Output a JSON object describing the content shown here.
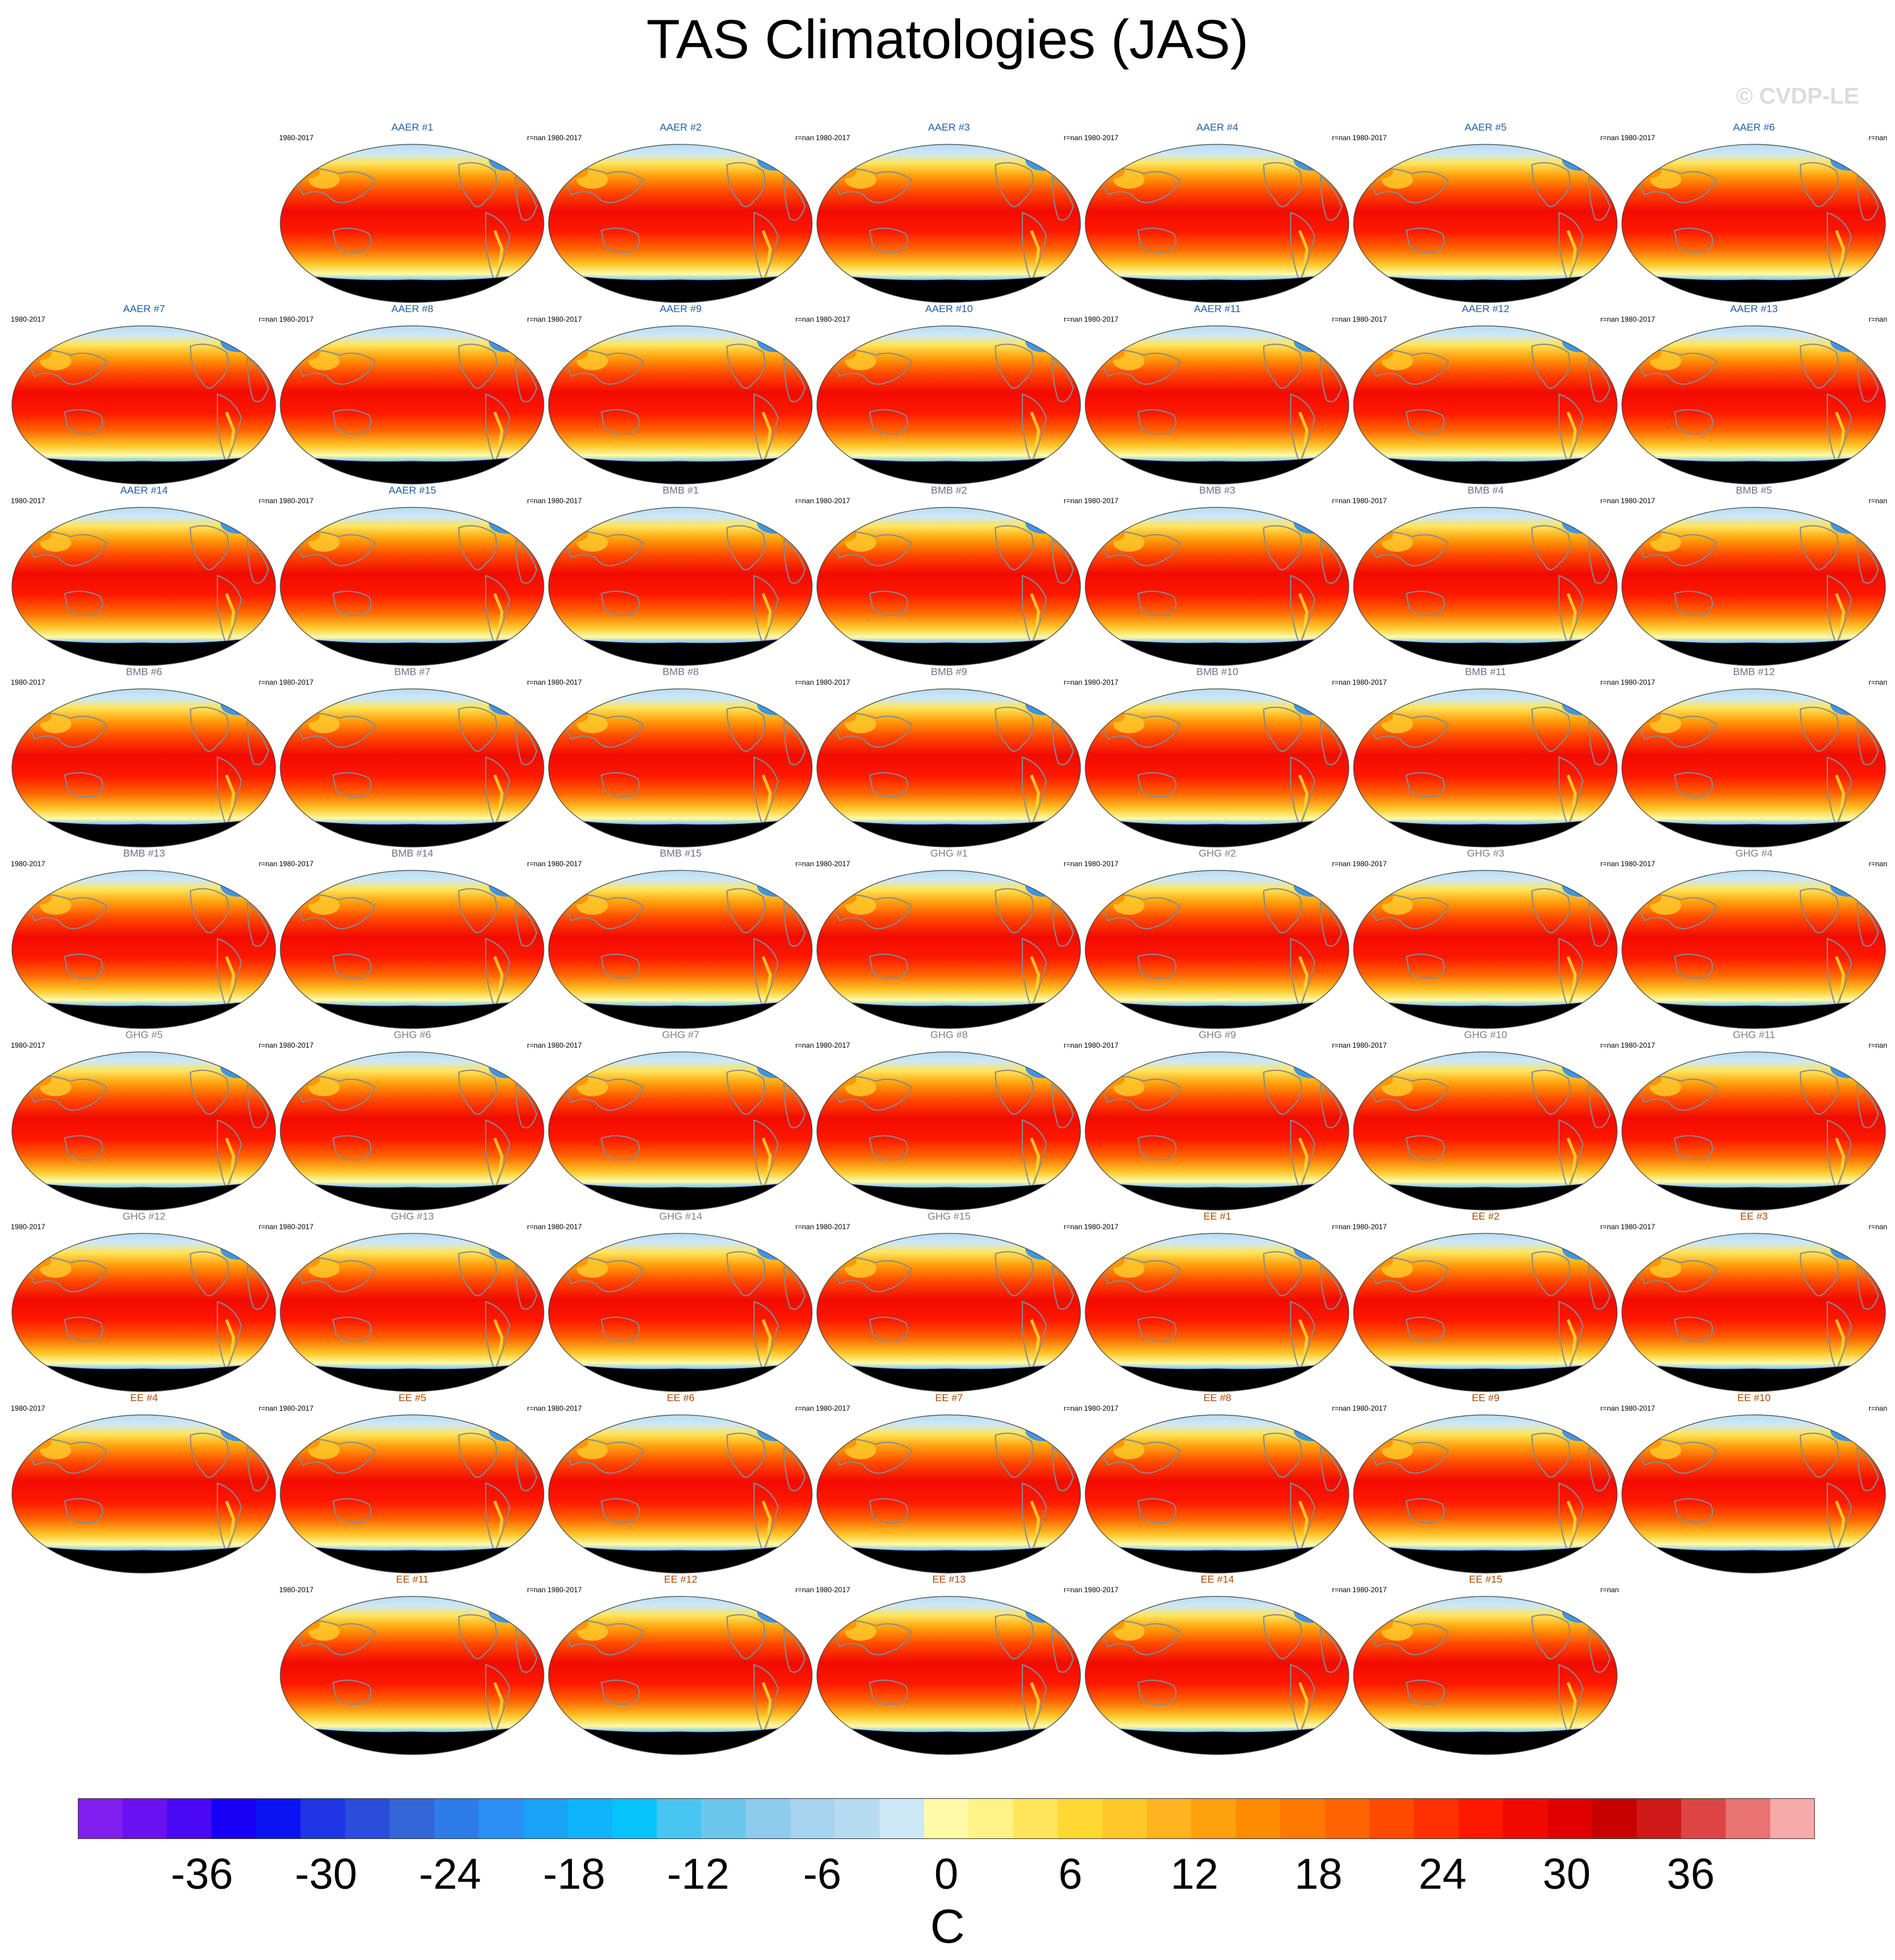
{
  "title": "TAS Climatologies (JAS)",
  "watermark": "© CVDP-LE",
  "chart_data": {
    "type": "heatmap",
    "title": "TAS Climatologies (JAS)",
    "period": "1980-2017",
    "stat_label": "r=nan",
    "units": "C",
    "colorbar": {
      "ticks": [
        "-36",
        "-30",
        "-24",
        "-18",
        "-12",
        "-6",
        "0",
        "6",
        "12",
        "18",
        "24",
        "30",
        "36"
      ],
      "range": [
        -42,
        42
      ],
      "interval": 2,
      "colors": [
        "#7f1ff0",
        "#6a11f2",
        "#4b08f5",
        "#1800f7",
        "#0a14f2",
        "#1f35e6",
        "#2b4ddc",
        "#3566d8",
        "#2e7bea",
        "#2a8ef5",
        "#1aa2f7",
        "#0db4f9",
        "#06c3fb",
        "#48c6f2",
        "#6cc7ec",
        "#8fcbec",
        "#a6d3ee",
        "#b7dcf2",
        "#cde8f6",
        "#fffaa8",
        "#fff287",
        "#ffe55a",
        "#ffd834",
        "#ffc82a",
        "#ffb420",
        "#ffa00c",
        "#ff8c00",
        "#ff7800",
        "#ff6400",
        "#ff4a00",
        "#ff3100",
        "#ff1800",
        "#f20a00",
        "#e00000",
        "#c80000",
        "#cf1818",
        "#dd4545",
        "#e97373",
        "#f7aaaa"
      ]
    },
    "panels": [
      {
        "label": "AAER #1",
        "group": "AAER"
      },
      {
        "label": "AAER #2",
        "group": "AAER"
      },
      {
        "label": "AAER #3",
        "group": "AAER"
      },
      {
        "label": "AAER #4",
        "group": "AAER"
      },
      {
        "label": "AAER #5",
        "group": "AAER"
      },
      {
        "label": "AAER #6",
        "group": "AAER"
      },
      {
        "label": "AAER #7",
        "group": "AAER"
      },
      {
        "label": "AAER #8",
        "group": "AAER"
      },
      {
        "label": "AAER #9",
        "group": "AAER"
      },
      {
        "label": "AAER #10",
        "group": "AAER"
      },
      {
        "label": "AAER #11",
        "group": "AAER"
      },
      {
        "label": "AAER #12",
        "group": "AAER"
      },
      {
        "label": "AAER #13",
        "group": "AAER"
      },
      {
        "label": "AAER #14",
        "group": "AAER"
      },
      {
        "label": "AAER #15",
        "group": "AAER"
      },
      {
        "label": "BMB #1",
        "group": "BMB"
      },
      {
        "label": "BMB #2",
        "group": "BMB"
      },
      {
        "label": "BMB #3",
        "group": "BMB"
      },
      {
        "label": "BMB #4",
        "group": "BMB"
      },
      {
        "label": "BMB #5",
        "group": "BMB"
      },
      {
        "label": "BMB #6",
        "group": "BMB"
      },
      {
        "label": "BMB #7",
        "group": "BMB"
      },
      {
        "label": "BMB #8",
        "group": "BMB"
      },
      {
        "label": "BMB #9",
        "group": "BMB"
      },
      {
        "label": "BMB #10",
        "group": "BMB"
      },
      {
        "label": "BMB #11",
        "group": "BMB"
      },
      {
        "label": "BMB #12",
        "group": "BMB"
      },
      {
        "label": "BMB #13",
        "group": "BMB"
      },
      {
        "label": "BMB #14",
        "group": "BMB"
      },
      {
        "label": "BMB #15",
        "group": "BMB"
      },
      {
        "label": "GHG #1",
        "group": "GHG"
      },
      {
        "label": "GHG #2",
        "group": "GHG"
      },
      {
        "label": "GHG #3",
        "group": "GHG"
      },
      {
        "label": "GHG #4",
        "group": "GHG"
      },
      {
        "label": "GHG #5",
        "group": "GHG"
      },
      {
        "label": "GHG #6",
        "group": "GHG"
      },
      {
        "label": "GHG #7",
        "group": "GHG"
      },
      {
        "label": "GHG #8",
        "group": "GHG"
      },
      {
        "label": "GHG #9",
        "group": "GHG"
      },
      {
        "label": "GHG #10",
        "group": "GHG"
      },
      {
        "label": "GHG #11",
        "group": "GHG"
      },
      {
        "label": "GHG #12",
        "group": "GHG"
      },
      {
        "label": "GHG #13",
        "group": "GHG"
      },
      {
        "label": "GHG #14",
        "group": "GHG"
      },
      {
        "label": "GHG #15",
        "group": "GHG"
      },
      {
        "label": "EE #1",
        "group": "EE"
      },
      {
        "label": "EE #2",
        "group": "EE"
      },
      {
        "label": "EE #3",
        "group": "EE"
      },
      {
        "label": "EE #4",
        "group": "EE"
      },
      {
        "label": "EE #5",
        "group": "EE"
      },
      {
        "label": "EE #6",
        "group": "EE"
      },
      {
        "label": "EE #7",
        "group": "EE"
      },
      {
        "label": "EE #8",
        "group": "EE"
      },
      {
        "label": "EE #9",
        "group": "EE"
      },
      {
        "label": "EE #10",
        "group": "EE"
      },
      {
        "label": "EE #11",
        "group": "EE"
      },
      {
        "label": "EE #12",
        "group": "EE"
      },
      {
        "label": "EE #13",
        "group": "EE"
      },
      {
        "label": "EE #14",
        "group": "EE"
      },
      {
        "label": "EE #15",
        "group": "EE"
      }
    ],
    "group_colors": {
      "AAER": "#1f5fa8",
      "BMB": "#6f6f8f",
      "GHG": "#808080",
      "EE": "#b04a00"
    }
  }
}
